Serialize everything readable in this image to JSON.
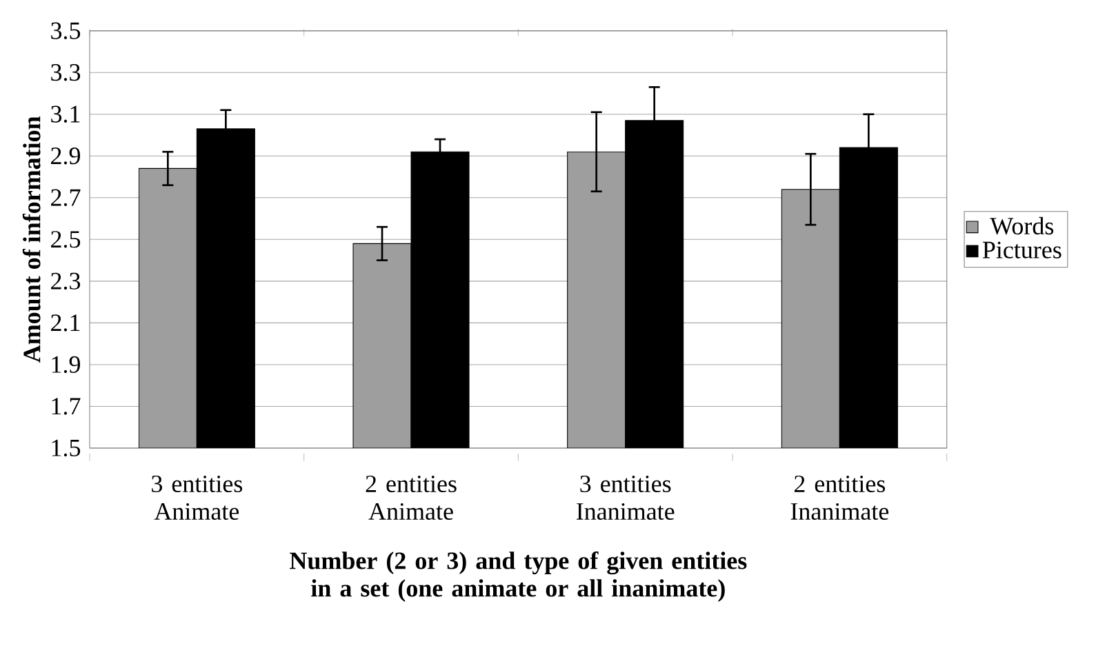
{
  "chart_data": {
    "type": "bar",
    "xlabel": "Number (2 or 3) and type of given entities in a set (one animate or all inanimate)",
    "ylabel": "Amount of information",
    "categories": [
      "3 entities Animate",
      "2 entities Animate",
      "3 entities Inanimate",
      "2 entities Inanimate"
    ],
    "series": [
      {
        "name": "Words",
        "color": "#9e9e9e",
        "values": [
          2.84,
          2.48,
          2.92,
          2.74
        ],
        "errors": [
          0.08,
          0.08,
          0.19,
          0.17
        ]
      },
      {
        "name": "Pictures",
        "color": "#000000",
        "values": [
          3.03,
          2.92,
          3.07,
          2.94
        ],
        "errors": [
          0.09,
          0.06,
          0.16,
          0.16
        ]
      }
    ],
    "ylim": [
      1.5,
      3.5
    ],
    "yticks": [
      1.5,
      1.7,
      1.9,
      2.1,
      2.3,
      2.5,
      2.7,
      2.9,
      3.1,
      3.3,
      3.5
    ],
    "grid": "y",
    "legend": "right"
  }
}
